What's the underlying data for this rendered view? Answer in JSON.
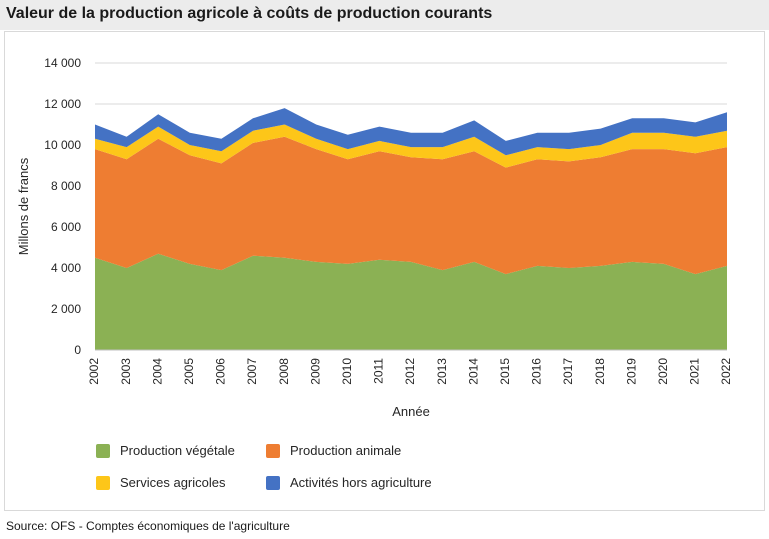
{
  "title": "Valeur de la production agricole à coûts de production courants",
  "source": "Source: OFS - Comptes économiques de l'agriculture",
  "chart_data": {
    "type": "area",
    "stacked": true,
    "title": "Valeur de la production agricole à coûts de production courants",
    "xlabel": "Année",
    "ylabel": "Millons de francs",
    "ylim": [
      0,
      14000
    ],
    "yticks": [
      0,
      2000,
      4000,
      6000,
      8000,
      10000,
      12000,
      14000
    ],
    "ytick_labels": [
      "0",
      "2 000",
      "4 000",
      "6 000",
      "8 000",
      "10 000",
      "12 000",
      "14 000"
    ],
    "grid": true,
    "legend_position": "bottom",
    "categories": [
      "2002",
      "2003",
      "2004",
      "2005",
      "2006",
      "2007",
      "2008",
      "2009",
      "2010",
      "2011",
      "2012",
      "2013",
      "2014",
      "2015",
      "2016",
      "2017",
      "2018",
      "2019",
      "2020",
      "2021",
      "2022"
    ],
    "series": [
      {
        "name": "Production végétale",
        "color": "#8bb154",
        "values": [
          4500,
          4000,
          4700,
          4200,
          3900,
          4600,
          4500,
          4300,
          4200,
          4400,
          4300,
          3900,
          4300,
          3700,
          4100,
          4000,
          4100,
          4300,
          4200,
          3700,
          4100
        ]
      },
      {
        "name": "Production animale",
        "color": "#ee7d32",
        "values": [
          5300,
          5300,
          5600,
          5300,
          5200,
          5500,
          5900,
          5500,
          5100,
          5300,
          5100,
          5400,
          5400,
          5200,
          5200,
          5200,
          5300,
          5500,
          5600,
          5900,
          5800
        ]
      },
      {
        "name": "Services agricoles",
        "color": "#fdc619",
        "values": [
          500,
          600,
          600,
          500,
          600,
          600,
          600,
          500,
          500,
          500,
          500,
          600,
          700,
          600,
          600,
          600,
          600,
          800,
          800,
          800,
          800
        ]
      },
      {
        "name": "Activités hors agriculture",
        "color": "#4472c4",
        "values": [
          700,
          500,
          600,
          600,
          600,
          600,
          800,
          700,
          700,
          700,
          700,
          700,
          800,
          700,
          700,
          800,
          800,
          700,
          700,
          700,
          900
        ]
      }
    ]
  }
}
